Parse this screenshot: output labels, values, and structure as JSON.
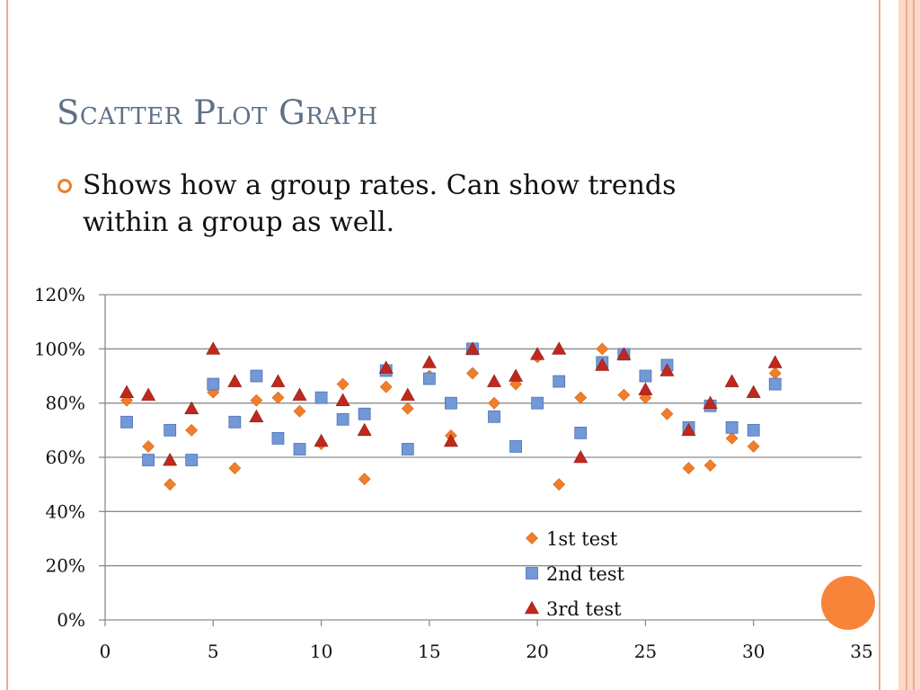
{
  "slide": {
    "title": "Scatter Plot Graph",
    "bullet": "Shows how a group rates.  Can show trends within a group as well."
  },
  "chart_data": {
    "type": "scatter",
    "title": "",
    "xlabel": "",
    "ylabel": "",
    "xlim": [
      0,
      35
    ],
    "ylim": [
      0,
      120
    ],
    "x_ticks": [
      0,
      5,
      10,
      15,
      20,
      25,
      30,
      35
    ],
    "y_ticks": [
      0,
      20,
      40,
      60,
      80,
      100,
      120
    ],
    "y_tick_labels": [
      "0%",
      "20%",
      "40%",
      "60%",
      "80%",
      "100%",
      "120%"
    ],
    "grid": "horizontal",
    "legend": "inside-bottom-right",
    "series": [
      {
        "name": "1st test",
        "marker": "diamond",
        "color": "#f07e2b",
        "x": [
          1,
          2,
          3,
          4,
          5,
          6,
          7,
          8,
          9,
          10,
          11,
          12,
          13,
          14,
          15,
          16,
          17,
          18,
          19,
          20,
          21,
          22,
          23,
          24,
          25,
          26,
          27,
          28,
          29,
          30,
          31
        ],
        "y": [
          81,
          64,
          50,
          70,
          84,
          56,
          81,
          82,
          77,
          65,
          87,
          52,
          86,
          78,
          90,
          68,
          91,
          80,
          87,
          97,
          50,
          82,
          100,
          83,
          82,
          76,
          56,
          57,
          67,
          64,
          91
        ]
      },
      {
        "name": "2nd test",
        "marker": "square",
        "color": "#7398d8",
        "x": [
          1,
          2,
          3,
          4,
          5,
          6,
          7,
          8,
          9,
          10,
          11,
          12,
          13,
          14,
          15,
          16,
          17,
          18,
          19,
          20,
          21,
          22,
          23,
          24,
          25,
          26,
          27,
          28,
          29,
          30,
          31
        ],
        "y": [
          73,
          59,
          70,
          59,
          87,
          73,
          90,
          67,
          63,
          82,
          74,
          76,
          92,
          63,
          89,
          80,
          100,
          75,
          64,
          80,
          88,
          69,
          95,
          98,
          90,
          94,
          71,
          79,
          71,
          70,
          87
        ]
      },
      {
        "name": "3rd test",
        "marker": "triangle",
        "color": "#c0281e",
        "x": [
          1,
          2,
          3,
          4,
          5,
          6,
          7,
          8,
          9,
          10,
          11,
          12,
          13,
          14,
          15,
          16,
          17,
          18,
          19,
          20,
          21,
          22,
          23,
          24,
          25,
          26,
          27,
          28,
          29,
          30,
          31
        ],
        "y": [
          84,
          83,
          59,
          78,
          100,
          88,
          75,
          88,
          83,
          66,
          81,
          70,
          93,
          83,
          95,
          66,
          100,
          88,
          90,
          98,
          100,
          60,
          94,
          98,
          85,
          92,
          70,
          80,
          88,
          84,
          95
        ]
      }
    ]
  }
}
